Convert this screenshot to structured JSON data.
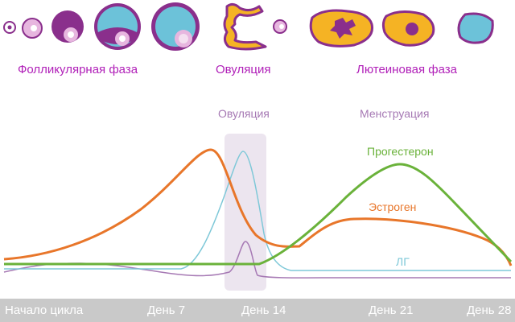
{
  "phases": {
    "follicular": "Фолликулярная фаза",
    "ovulation": "Овуляция",
    "luteal": "Лютеиновая фаза"
  },
  "annotations": {
    "ovulation": "Овуляция",
    "menstruation": "Менструация"
  },
  "curves": {
    "progesterone": {
      "label": "Прогестерон",
      "color": "#6ab23a"
    },
    "estrogen": {
      "label": "Эстроген",
      "color": "#e8762a"
    },
    "lh": {
      "label": "ЛГ",
      "color": "#7ec8d8"
    },
    "fsh": {
      "color": "#a679b4"
    }
  },
  "axis": {
    "ticks": [
      "Начало цикла",
      "День 7",
      "День 14",
      "День 21",
      "День 28"
    ]
  },
  "colors": {
    "phase_text": "#b01fb8",
    "ovulation_band": "#ece5ef",
    "axis_bar": "#c9c9c9",
    "cell_purple": "#8a2f8c",
    "cell_pink": "#e7b6df",
    "cell_blue": "#6cc2d9",
    "corpus_orange": "#f5b324"
  },
  "icons": [
    "follicle-stage-icons",
    "ovulation-egg-icon",
    "corpus-luteum-icons"
  ]
}
